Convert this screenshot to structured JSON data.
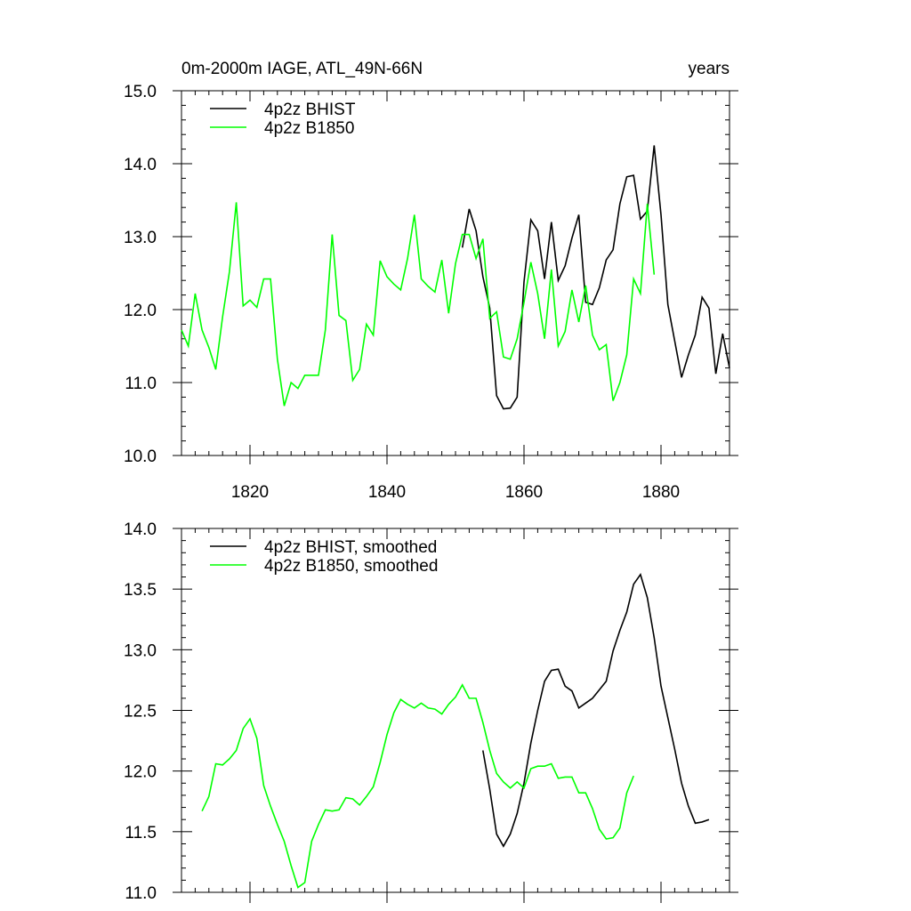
{
  "chart_data": [
    {
      "type": "line",
      "title_left": "0m-2000m IAGE, ATL_49N-66N",
      "title_right": "years",
      "xlim": [
        1810,
        1890
      ],
      "ylim": [
        10.0,
        15.0
      ],
      "x_ticks": [
        1820,
        1840,
        1860,
        1880
      ],
      "x_tick_labels": [
        "1820",
        "1840",
        "1860",
        "1880"
      ],
      "y_ticks": [
        10.0,
        11.0,
        12.0,
        13.0,
        14.0,
        15.0
      ],
      "y_tick_labels": [
        "10.0",
        "11.0",
        "12.0",
        "13.0",
        "14.0",
        "15.0"
      ],
      "legend_position": "top-left",
      "series": [
        {
          "name": "4p2z BHIST",
          "color": "#000000",
          "points": [
            [
              1851,
              12.85
            ],
            [
              1852,
              13.38
            ],
            [
              1853,
              13.08
            ],
            [
              1854,
              12.45
            ],
            [
              1855,
              12.02
            ],
            [
              1856,
              10.82
            ],
            [
              1857,
              10.64
            ],
            [
              1858,
              10.65
            ],
            [
              1859,
              10.8
            ],
            [
              1860,
              12.38
            ],
            [
              1861,
              13.23
            ],
            [
              1862,
              13.08
            ],
            [
              1863,
              12.42
            ],
            [
              1864,
              13.2
            ],
            [
              1865,
              12.4
            ],
            [
              1866,
              12.6
            ],
            [
              1867,
              12.98
            ],
            [
              1868,
              13.3
            ],
            [
              1869,
              12.1
            ],
            [
              1870,
              12.07
            ],
            [
              1871,
              12.3
            ],
            [
              1872,
              12.68
            ],
            [
              1873,
              12.82
            ],
            [
              1874,
              13.45
            ],
            [
              1875,
              13.82
            ],
            [
              1876,
              13.84
            ],
            [
              1877,
              13.24
            ],
            [
              1878,
              13.35
            ],
            [
              1879,
              14.25
            ],
            [
              1880,
              13.3
            ],
            [
              1881,
              12.07
            ],
            [
              1882,
              11.57
            ],
            [
              1883,
              11.07
            ],
            [
              1884,
              11.38
            ],
            [
              1885,
              11.65
            ],
            [
              1886,
              12.17
            ],
            [
              1887,
              12.02
            ],
            [
              1888,
              11.12
            ],
            [
              1889,
              11.67
            ],
            [
              1890,
              11.2
            ]
          ]
        },
        {
          "name": "4p2z B1850",
          "color": "#00ff00",
          "points": [
            [
              1810,
              11.72
            ],
            [
              1811,
              11.5
            ],
            [
              1812,
              12.22
            ],
            [
              1813,
              11.72
            ],
            [
              1814,
              11.48
            ],
            [
              1815,
              11.18
            ],
            [
              1816,
              11.9
            ],
            [
              1817,
              12.52
            ],
            [
              1818,
              13.47
            ],
            [
              1819,
              12.05
            ],
            [
              1820,
              12.13
            ],
            [
              1821,
              12.03
            ],
            [
              1822,
              12.42
            ],
            [
              1823,
              12.42
            ],
            [
              1824,
              11.32
            ],
            [
              1825,
              10.68
            ],
            [
              1826,
              11.0
            ],
            [
              1827,
              10.92
            ],
            [
              1828,
              11.1
            ],
            [
              1829,
              11.1
            ],
            [
              1830,
              11.1
            ],
            [
              1831,
              11.72
            ],
            [
              1832,
              13.03
            ],
            [
              1833,
              11.92
            ],
            [
              1834,
              11.85
            ],
            [
              1835,
              11.03
            ],
            [
              1836,
              11.18
            ],
            [
              1837,
              11.8
            ],
            [
              1838,
              11.65
            ],
            [
              1839,
              12.67
            ],
            [
              1840,
              12.45
            ],
            [
              1841,
              12.35
            ],
            [
              1842,
              12.27
            ],
            [
              1843,
              12.7
            ],
            [
              1844,
              13.3
            ],
            [
              1845,
              12.42
            ],
            [
              1846,
              12.32
            ],
            [
              1847,
              12.24
            ],
            [
              1848,
              12.68
            ],
            [
              1849,
              11.95
            ],
            [
              1850,
              12.63
            ],
            [
              1851,
              13.03
            ],
            [
              1852,
              13.03
            ],
            [
              1853,
              12.7
            ],
            [
              1854,
              12.97
            ],
            [
              1855,
              11.88
            ],
            [
              1856,
              11.97
            ],
            [
              1857,
              11.35
            ],
            [
              1858,
              11.32
            ],
            [
              1859,
              11.6
            ],
            [
              1860,
              12.1
            ],
            [
              1861,
              12.65
            ],
            [
              1862,
              12.22
            ],
            [
              1863,
              11.6
            ],
            [
              1864,
              12.55
            ],
            [
              1865,
              11.5
            ],
            [
              1866,
              11.7
            ],
            [
              1867,
              12.27
            ],
            [
              1868,
              11.83
            ],
            [
              1869,
              12.33
            ],
            [
              1870,
              11.65
            ],
            [
              1871,
              11.45
            ],
            [
              1872,
              11.52
            ],
            [
              1873,
              10.75
            ],
            [
              1874,
              11.0
            ],
            [
              1875,
              11.38
            ],
            [
              1876,
              12.42
            ],
            [
              1877,
              12.22
            ],
            [
              1878,
              13.45
            ],
            [
              1879,
              12.48
            ]
          ]
        }
      ]
    },
    {
      "type": "line",
      "xlim": [
        1810,
        1890
      ],
      "ylim": [
        11.0,
        14.0
      ],
      "x_ticks": [
        1820,
        1840,
        1860,
        1880
      ],
      "y_ticks": [
        11.0,
        11.5,
        12.0,
        12.5,
        13.0,
        13.5,
        14.0
      ],
      "y_tick_labels": [
        "11.0",
        "11.5",
        "12.0",
        "12.5",
        "13.0",
        "13.5",
        "14.0"
      ],
      "legend_position": "top-left",
      "series": [
        {
          "name": "4p2z BHIST, smoothed",
          "color": "#000000",
          "points": [
            [
              1854,
              12.17
            ],
            [
              1855,
              11.85
            ],
            [
              1856,
              11.48
            ],
            [
              1857,
              11.38
            ],
            [
              1858,
              11.48
            ],
            [
              1859,
              11.65
            ],
            [
              1860,
              11.9
            ],
            [
              1861,
              12.23
            ],
            [
              1862,
              12.5
            ],
            [
              1863,
              12.74
            ],
            [
              1864,
              12.83
            ],
            [
              1865,
              12.84
            ],
            [
              1866,
              12.7
            ],
            [
              1867,
              12.66
            ],
            [
              1868,
              12.52
            ],
            [
              1869,
              12.56
            ],
            [
              1870,
              12.6
            ],
            [
              1871,
              12.67
            ],
            [
              1872,
              12.74
            ],
            [
              1873,
              12.99
            ],
            [
              1874,
              13.16
            ],
            [
              1875,
              13.31
            ],
            [
              1876,
              13.54
            ],
            [
              1877,
              13.62
            ],
            [
              1878,
              13.43
            ],
            [
              1879,
              13.1
            ],
            [
              1880,
              12.7
            ],
            [
              1881,
              12.44
            ],
            [
              1882,
              12.18
            ],
            [
              1883,
              11.9
            ],
            [
              1884,
              11.71
            ],
            [
              1885,
              11.57
            ],
            [
              1886,
              11.58
            ],
            [
              1887,
              11.6
            ]
          ]
        },
        {
          "name": "4p2z B1850, smoothed",
          "color": "#00ff00",
          "points": [
            [
              1813,
              11.67
            ],
            [
              1814,
              11.79
            ],
            [
              1815,
              12.06
            ],
            [
              1816,
              12.05
            ],
            [
              1817,
              12.1
            ],
            [
              1818,
              12.17
            ],
            [
              1819,
              12.35
            ],
            [
              1820,
              12.43
            ],
            [
              1821,
              12.27
            ],
            [
              1822,
              11.88
            ],
            [
              1823,
              11.71
            ],
            [
              1824,
              11.56
            ],
            [
              1825,
              11.42
            ],
            [
              1826,
              11.22
            ],
            [
              1827,
              11.04
            ],
            [
              1828,
              11.08
            ],
            [
              1829,
              11.42
            ],
            [
              1830,
              11.56
            ],
            [
              1831,
              11.68
            ],
            [
              1832,
              11.67
            ],
            [
              1833,
              11.68
            ],
            [
              1834,
              11.78
            ],
            [
              1835,
              11.77
            ],
            [
              1836,
              11.72
            ],
            [
              1837,
              11.79
            ],
            [
              1838,
              11.87
            ],
            [
              1839,
              12.07
            ],
            [
              1840,
              12.3
            ],
            [
              1841,
              12.48
            ],
            [
              1842,
              12.59
            ],
            [
              1843,
              12.55
            ],
            [
              1844,
              12.52
            ],
            [
              1845,
              12.56
            ],
            [
              1846,
              12.52
            ],
            [
              1847,
              12.51
            ],
            [
              1848,
              12.47
            ],
            [
              1849,
              12.55
            ],
            [
              1850,
              12.61
            ],
            [
              1851,
              12.71
            ],
            [
              1852,
              12.6
            ],
            [
              1853,
              12.6
            ],
            [
              1854,
              12.4
            ],
            [
              1855,
              12.17
            ],
            [
              1856,
              11.98
            ],
            [
              1857,
              11.91
            ],
            [
              1858,
              11.86
            ],
            [
              1859,
              11.91
            ],
            [
              1860,
              11.86
            ],
            [
              1861,
              12.02
            ],
            [
              1862,
              12.04
            ],
            [
              1863,
              12.04
            ],
            [
              1864,
              12.06
            ],
            [
              1865,
              11.94
            ],
            [
              1866,
              11.95
            ],
            [
              1867,
              11.95
            ],
            [
              1868,
              11.82
            ],
            [
              1869,
              11.82
            ],
            [
              1870,
              11.69
            ],
            [
              1871,
              11.52
            ],
            [
              1872,
              11.44
            ],
            [
              1873,
              11.45
            ],
            [
              1874,
              11.53
            ],
            [
              1875,
              11.82
            ],
            [
              1876,
              11.96
            ]
          ]
        }
      ]
    }
  ]
}
